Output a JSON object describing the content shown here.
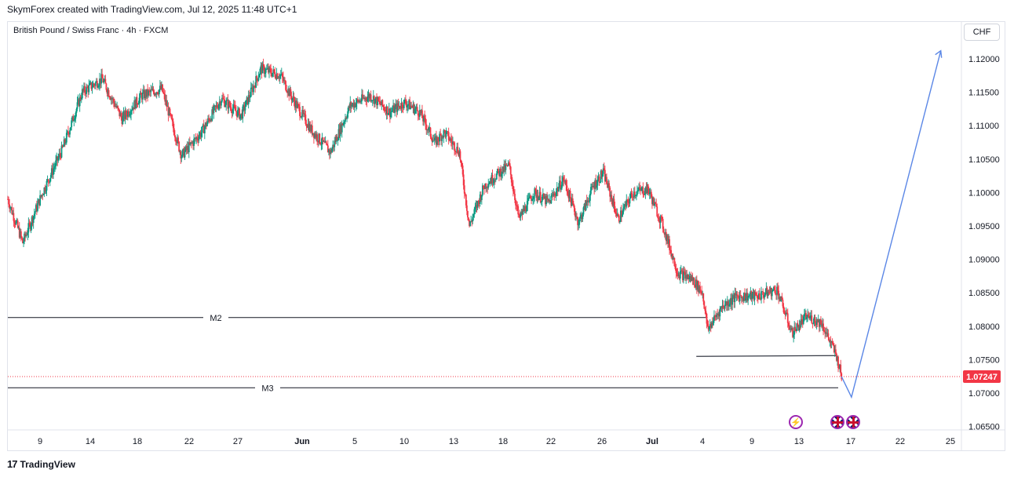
{
  "header": {
    "attribution": "SkymForex created with TradingView.com, Jul 12, 2025 11:48 UTC+1",
    "symbol": "British Pound / Swiss Franc · 4h · FXCM",
    "currency": "CHF"
  },
  "footer": {
    "brand": "TradingView",
    "logo_glyph": "17"
  },
  "colors": {
    "up": "#089981",
    "down": "#f23645",
    "projection": "#5b87e6",
    "level": "#131722",
    "price": "#f23645"
  },
  "chart_data": {
    "type": "candlestick",
    "timeframe": "4h",
    "y_axis": {
      "range": [
        1.0645,
        1.1255
      ],
      "ticks": [
        "1.12000",
        "1.11500",
        "1.11000",
        "1.10500",
        "1.10000",
        "1.09500",
        "1.09000",
        "1.08500",
        "1.08000",
        "1.07500",
        "1.07000",
        "1.06500"
      ]
    },
    "x_axis": {
      "ticks": [
        "9",
        "14",
        "18",
        "22",
        "27",
        "Jun",
        "5",
        "10",
        "13",
        "18",
        "22",
        "26",
        "Jul",
        "4",
        "9",
        "13",
        "17",
        "22",
        "25"
      ]
    },
    "price_path": [
      [
        0,
        1.099
      ],
      [
        3,
        1.0925
      ],
      [
        7,
        1.1
      ],
      [
        11,
        1.1065
      ],
      [
        15,
        1.115
      ],
      [
        19,
        1.117
      ],
      [
        23,
        1.111
      ],
      [
        27,
        1.1145
      ],
      [
        31,
        1.1155
      ],
      [
        35,
        1.1055
      ],
      [
        39,
        1.109
      ],
      [
        43,
        1.114
      ],
      [
        47,
        1.1115
      ],
      [
        51,
        1.1185
      ],
      [
        55,
        1.1175
      ],
      [
        57,
        1.1145
      ],
      [
        61,
        1.1095
      ],
      [
        65,
        1.106
      ],
      [
        69,
        1.113
      ],
      [
        73,
        1.1145
      ],
      [
        77,
        1.112
      ],
      [
        80,
        1.1135
      ],
      [
        83,
        1.112
      ],
      [
        86,
        1.1075
      ],
      [
        88,
        1.109
      ],
      [
        91,
        1.106
      ],
      [
        93,
        1.095
      ],
      [
        96,
        1.101
      ],
      [
        99,
        1.103
      ],
      [
        101,
        1.104
      ],
      [
        103,
        1.096
      ],
      [
        106,
        1.1
      ],
      [
        109,
        1.0985
      ],
      [
        112,
        1.102
      ],
      [
        115,
        1.0955
      ],
      [
        118,
        1.101
      ],
      [
        120,
        1.103
      ],
      [
        123,
        1.096
      ],
      [
        126,
        1.1
      ],
      [
        129,
        1.1005
      ],
      [
        132,
        1.095
      ],
      [
        135,
        1.088
      ],
      [
        138,
        1.087
      ],
      [
        140,
        1.085
      ],
      [
        141,
        1.0795
      ],
      [
        144,
        1.083
      ],
      [
        147,
        1.0845
      ],
      [
        151,
        1.0845
      ],
      [
        155,
        1.0855
      ],
      [
        158,
        1.079
      ],
      [
        161,
        1.0815
      ],
      [
        164,
        1.0805
      ],
      [
        167,
        1.0755
      ],
      [
        168,
        1.07247
      ]
    ],
    "last_price": "1.07247",
    "levels": [
      {
        "label": "M2",
        "value": 1.0813
      },
      {
        "label": "M3",
        "value": 1.0708
      },
      {
        "label": "",
        "value": 1.0755,
        "x_range": [
          140,
          168
        ]
      }
    ],
    "projection": [
      [
        168,
        1.07247
      ],
      [
        170,
        1.0694
      ],
      [
        188,
        1.1212
      ]
    ],
    "events": [
      {
        "type": "dividend-bolt",
        "glyph": "⚡"
      },
      {
        "type": "uk-flag"
      },
      {
        "type": "uk-flag"
      }
    ]
  }
}
